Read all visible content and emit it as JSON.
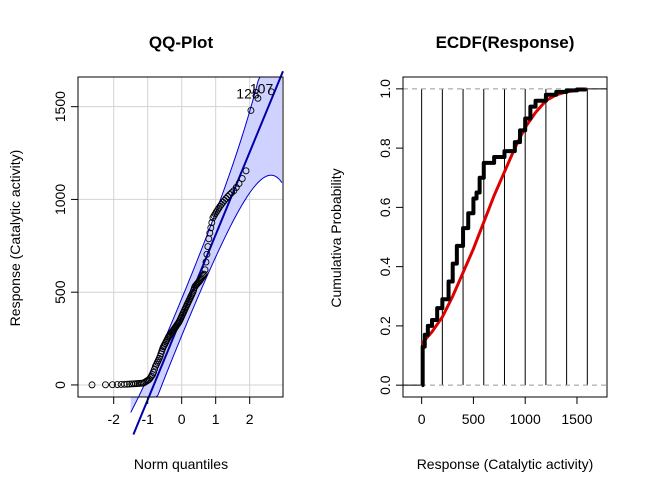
{
  "chart_data": [
    {
      "type": "scatter",
      "subtype": "qq-plot",
      "title": "QQ-Plot",
      "xlabel": "Norm quantiles",
      "ylabel": "Response (Catalytic activity)",
      "xlim": [
        -3.05,
        2.98
      ],
      "ylim": [
        -65,
        1660
      ],
      "xticks": [
        -2,
        -1,
        0,
        1,
        2
      ],
      "yticks": [
        0,
        500,
        1000,
        1500
      ],
      "grid": true,
      "colors": {
        "points": "#000000",
        "line": "#0000aa",
        "band_fill": "#cfd2ff",
        "band_edge": "#0000cc",
        "grid": "#d3d3d3"
      },
      "reference_line": {
        "intercept": 365,
        "slope": 445
      },
      "point_labels": [
        {
          "text": "107",
          "x": 2.35,
          "y": 1570
        },
        {
          "text": "128",
          "x": 1.95,
          "y": 1545
        }
      ],
      "notes": "points generated from sample quantiles; band is a pointwise confidence envelope"
    },
    {
      "type": "line",
      "subtype": "ecdf",
      "title": "ECDF(Response)",
      "xlabel": "Response (Catalytic activity)",
      "ylabel": "Cumulativa Probability",
      "xlim": [
        -180,
        1790
      ],
      "ylim": [
        -0.04,
        1.04
      ],
      "xticks": [
        0,
        500,
        1000,
        1500
      ],
      "yticks": [
        0.0,
        0.2,
        0.4,
        0.6,
        0.8,
        1.0
      ],
      "vertical_lines": [
        0,
        200,
        400,
        600,
        800,
        1000,
        1200,
        1400,
        1600
      ],
      "hlines_dashed": [
        0,
        1
      ],
      "series": [
        {
          "role": "ecdf",
          "color": "#000000",
          "x": [
            0,
            10,
            30,
            60,
            100,
            150,
            200,
            260,
            300,
            340,
            400,
            450,
            500,
            530,
            560,
            600,
            700,
            800,
            900,
            950,
            1000,
            1050,
            1100,
            1200,
            1300,
            1400,
            1500,
            1580
          ],
          "y": [
            0.0,
            0.13,
            0.17,
            0.2,
            0.22,
            0.26,
            0.29,
            0.35,
            0.41,
            0.47,
            0.53,
            0.58,
            0.63,
            0.65,
            0.7,
            0.75,
            0.77,
            0.79,
            0.82,
            0.86,
            0.9,
            0.94,
            0.96,
            0.98,
            0.99,
            0.995,
            0.998,
            1.0
          ]
        },
        {
          "role": "fitted-normal-cdf",
          "color": "#dd0000",
          "x": [
            0,
            100,
            200,
            300,
            400,
            500,
            600,
            700,
            800,
            900,
            1000,
            1100,
            1200,
            1300,
            1400,
            1500,
            1600
          ],
          "y": [
            0.14,
            0.18,
            0.23,
            0.3,
            0.38,
            0.46,
            0.55,
            0.64,
            0.72,
            0.8,
            0.87,
            0.92,
            0.96,
            0.98,
            0.99,
            0.995,
            1.0
          ]
        }
      ]
    }
  ]
}
